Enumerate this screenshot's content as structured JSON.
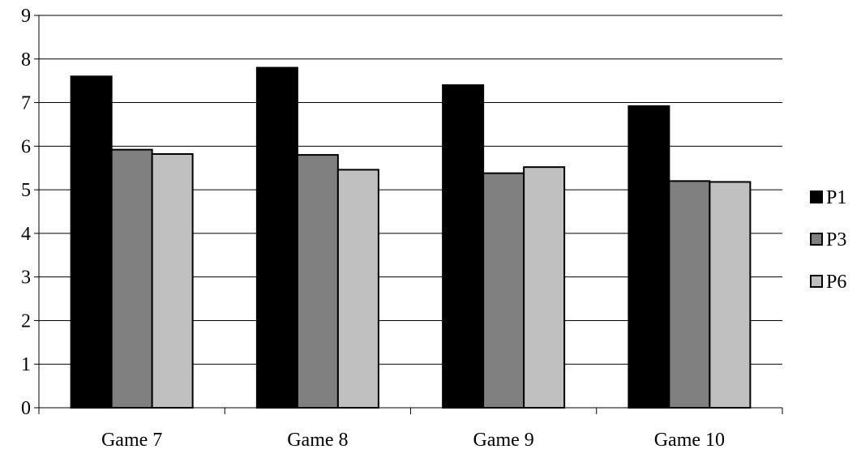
{
  "chart_data": {
    "type": "bar",
    "categories": [
      "Game 7",
      "Game 8",
      "Game 9",
      "Game 10"
    ],
    "series": [
      {
        "name": "P1",
        "values": [
          7.6,
          7.8,
          7.4,
          6.92
        ],
        "color": "#000000"
      },
      {
        "name": "P3",
        "values": [
          5.92,
          5.8,
          5.38,
          5.2
        ],
        "color": "#808080"
      },
      {
        "name": "P6",
        "values": [
          5.82,
          5.46,
          5.52,
          5.18
        ],
        "color": "#c0c0c0"
      }
    ],
    "ylim": [
      0,
      9
    ],
    "yticks": [
      0,
      1,
      2,
      3,
      4,
      5,
      6,
      7,
      8,
      9
    ],
    "grid": true,
    "legend": "right"
  }
}
